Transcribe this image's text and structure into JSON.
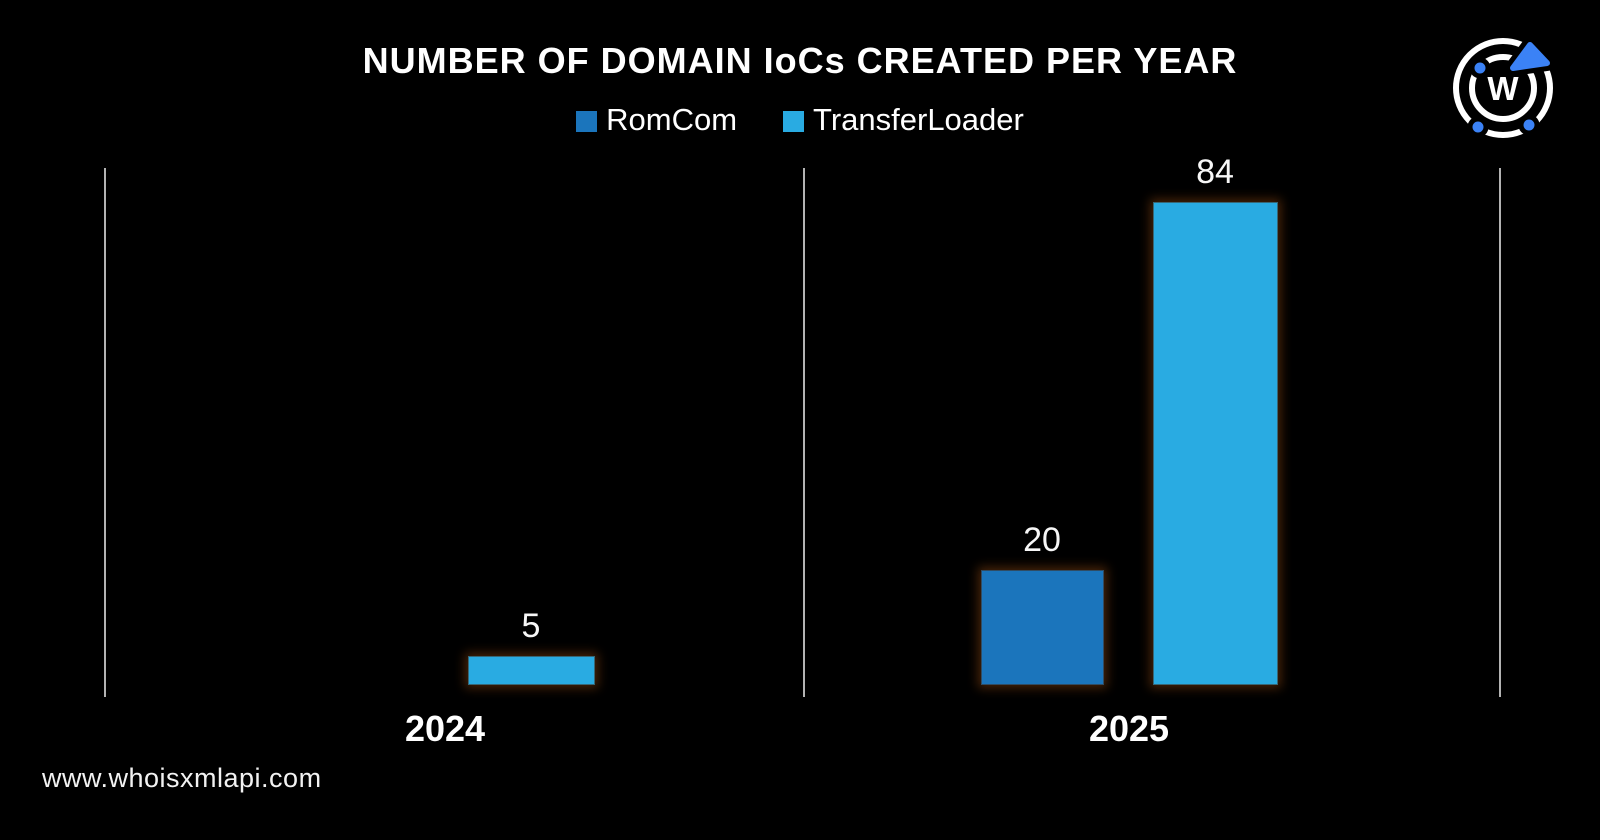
{
  "chart_data": {
    "type": "bar",
    "title": "NUMBER OF DOMAIN IoCs CREATED PER YEAR",
    "categories": [
      "2024",
      "2025"
    ],
    "series": [
      {
        "name": "RomCom",
        "color": "#1B75BC",
        "values": [
          0,
          20
        ]
      },
      {
        "name": "TransferLoader",
        "color": "#29ABE2",
        "values": [
          5,
          84
        ]
      }
    ],
    "ylim": [
      0,
      90
    ],
    "grid": false,
    "legend_position": "top-center",
    "value_labels_shown": true,
    "notes": "No RomCom bar rendered for 2024; thin vertical gray separator lines frame each category group"
  },
  "footer": {
    "website": "www.whoisxmlapi.com"
  },
  "logo": {
    "name": "whoisxmlapi-logo",
    "letter": "W",
    "accent_color": "#3B82F6",
    "ring_color": "#FFFFFF"
  },
  "colors": {
    "background": "#000000",
    "text": "#FFFFFF",
    "axis_line": "#B3B3B3"
  }
}
